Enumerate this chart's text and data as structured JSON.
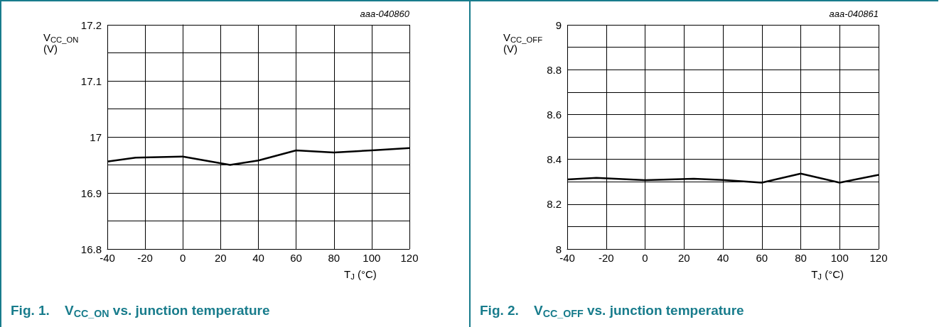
{
  "chart_data": [
    {
      "type": "line",
      "title": "Fig. 1.    V$_{CC_ON}$ vs. junction temperature",
      "xlabel": "T$_{J}$ (°C)",
      "ylabel": "V$_{CC_ON}$ (V)",
      "annotations": [
        "aaa-040860"
      ],
      "x": [
        -40,
        -25,
        0,
        25,
        40,
        60,
        80,
        100,
        120
      ],
      "series": [
        {
          "color": "#000000",
          "values": [
            16.956,
            16.963,
            16.965,
            16.95,
            16.958,
            16.976,
            16.972,
            16.976,
            16.98
          ]
        }
      ],
      "xlim": [
        -40,
        120
      ],
      "xticks": [
        -40,
        -20,
        0,
        20,
        40,
        60,
        80,
        100,
        120
      ],
      "ylim": [
        16.8,
        17.2
      ],
      "yticks": [
        16.8,
        {
          "value": 16.85,
          "label": null
        },
        16.9,
        {
          "value": 16.95,
          "label": null
        },
        17,
        {
          "value": 17.05,
          "label": null
        },
        17.1,
        {
          "value": 17.15,
          "label": null
        },
        17.2
      ],
      "grid": true
    },
    {
      "type": "line",
      "title": "Fig. 2.    V$_{CC_OFF}$ vs. junction temperature",
      "xlabel": "T$_{J}$ (°C)",
      "ylabel": "V$_{CC_OFF}$ (V)",
      "annotations": [
        "aaa-040861"
      ],
      "x": [
        -40,
        -25,
        0,
        25,
        40,
        60,
        80,
        100,
        120
      ],
      "series": [
        {
          "color": "#000000",
          "values": [
            8.31,
            8.317,
            8.307,
            8.313,
            8.308,
            8.296,
            8.336,
            8.296,
            8.331
          ]
        }
      ],
      "xlim": [
        -40,
        120
      ],
      "xticks": [
        -40,
        -20,
        0,
        20,
        40,
        60,
        80,
        100,
        120
      ],
      "ylim": [
        8,
        9
      ],
      "yticks": [
        8,
        {
          "value": 8.1,
          "label": null
        },
        8.2,
        {
          "value": 8.3,
          "label": null
        },
        8.4,
        {
          "value": 8.5,
          "label": null
        },
        8.6,
        {
          "value": 8.7,
          "label": null
        },
        8.8,
        {
          "value": 8.9,
          "label": null
        },
        9
      ],
      "grid": true
    }
  ]
}
